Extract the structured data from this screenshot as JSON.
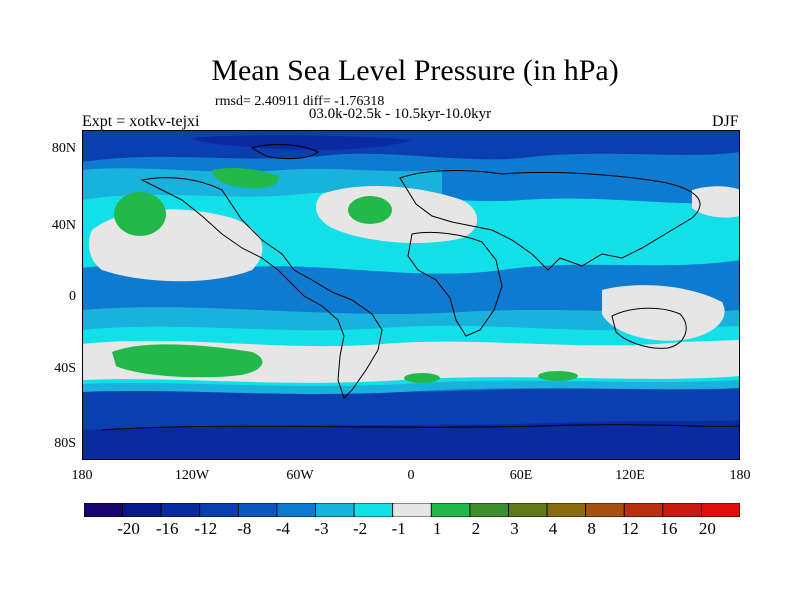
{
  "title": "Mean Sea Level Pressure (in hPa)",
  "stats": "rmsd= 2.40911 diff= -1.76318",
  "period": "03.0k-02.5k - 10.5kyr-10.0kyr",
  "experiment": "Expt = xotkv-tejxi",
  "season": "DJF",
  "lat_labels": [
    "80N",
    "40N",
    "0",
    "40S",
    "80S"
  ],
  "lon_labels": [
    "180",
    "120W",
    "60W",
    "0",
    "60E",
    "120E",
    "180"
  ],
  "colorbar": {
    "colors": [
      "#1a0570",
      "#0a1a8c",
      "#0a2aa0",
      "#0b3fb0",
      "#0c56c0",
      "#0e7ad0",
      "#18b2dc",
      "#12e0e8",
      "#e6e6e6",
      "#22b84a",
      "#3f8e2e",
      "#5e7a1a",
      "#8a6a10",
      "#a85010",
      "#b83010",
      "#c81a10",
      "#e00e0e"
    ],
    "labels": [
      "-20",
      "-16",
      "-12",
      "-8",
      "-4",
      "-3",
      "-2",
      "-1",
      "1",
      "2",
      "3",
      "4",
      "8",
      "12",
      "16",
      "20"
    ]
  },
  "map_colors": {
    "base": "#0e7ad0",
    "deep": "#0b3fb0",
    "light": "#18b2dc",
    "cyan": "#12e0e8",
    "neutral": "#e6e6e6",
    "positive": "#22b84a"
  }
}
